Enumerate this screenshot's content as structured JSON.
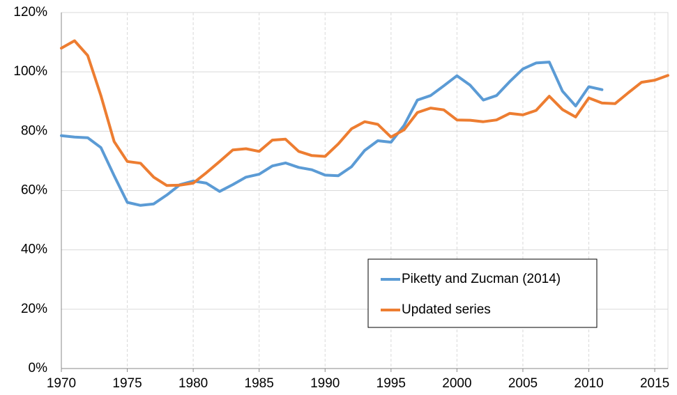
{
  "chart_data": {
    "type": "line",
    "x": [
      1970,
      1971,
      1972,
      1973,
      1974,
      1975,
      1976,
      1977,
      1978,
      1979,
      1980,
      1981,
      1982,
      1983,
      1984,
      1985,
      1986,
      1987,
      1988,
      1989,
      1990,
      1991,
      1992,
      1993,
      1994,
      1995,
      1996,
      1997,
      1998,
      1999,
      2000,
      2001,
      2002,
      2003,
      2004,
      2005,
      2006,
      2007,
      2008,
      2009,
      2010,
      2011,
      2012,
      2013,
      2014,
      2015,
      2016
    ],
    "series": [
      {
        "name": "Piketty and Zucman (2014)",
        "color": "#5b9bd5",
        "values": [
          78.5,
          78,
          77.8,
          74.5,
          65,
          56,
          55,
          55.5,
          58.5,
          62,
          63.2,
          62.5,
          59.7,
          62,
          64.5,
          65.5,
          68.3,
          69.3,
          67.8,
          67,
          65.2,
          65,
          68,
          73.5,
          76.8,
          76.3,
          82,
          90.5,
          92,
          95.3,
          98.7,
          95.5,
          90.5,
          92,
          96.7,
          101,
          103,
          103.3,
          93.5,
          88.5,
          95,
          94,
          null,
          null,
          null,
          null,
          null
        ]
      },
      {
        "name": "Updated series",
        "color": "#ed7d31",
        "values": [
          108,
          110.5,
          105.5,
          92,
          76.5,
          69.8,
          69.2,
          64.5,
          61.7,
          61.8,
          62.5,
          66,
          69.8,
          73.7,
          74.1,
          73.2,
          77,
          77.3,
          73.2,
          71.8,
          71.5,
          75.7,
          80.8,
          83.2,
          82.3,
          78,
          80.5,
          86.3,
          87.8,
          87.2,
          83.8,
          83.7,
          83.2,
          83.8,
          86,
          85.5,
          87,
          91.8,
          87.3,
          84.8,
          91.2,
          89.5,
          89.3,
          93,
          96.5,
          97.2,
          98.8
        ]
      }
    ],
    "xlim": [
      1970,
      2016
    ],
    "xticks": [
      1970,
      1975,
      1980,
      1985,
      1990,
      1995,
      2000,
      2005,
      2010,
      2015
    ],
    "ylim": [
      0,
      120
    ],
    "yticks": [
      {
        "value": 0,
        "label": "0%"
      },
      {
        "value": 20,
        "label": "20%"
      },
      {
        "value": 40,
        "label": "40%"
      },
      {
        "value": 60,
        "label": "60%"
      },
      {
        "value": 80,
        "label": "80%"
      },
      {
        "value": 100,
        "label": "100%"
      },
      {
        "value": 120,
        "label": "120%"
      }
    ],
    "grid": true,
    "legend": "lower right"
  }
}
